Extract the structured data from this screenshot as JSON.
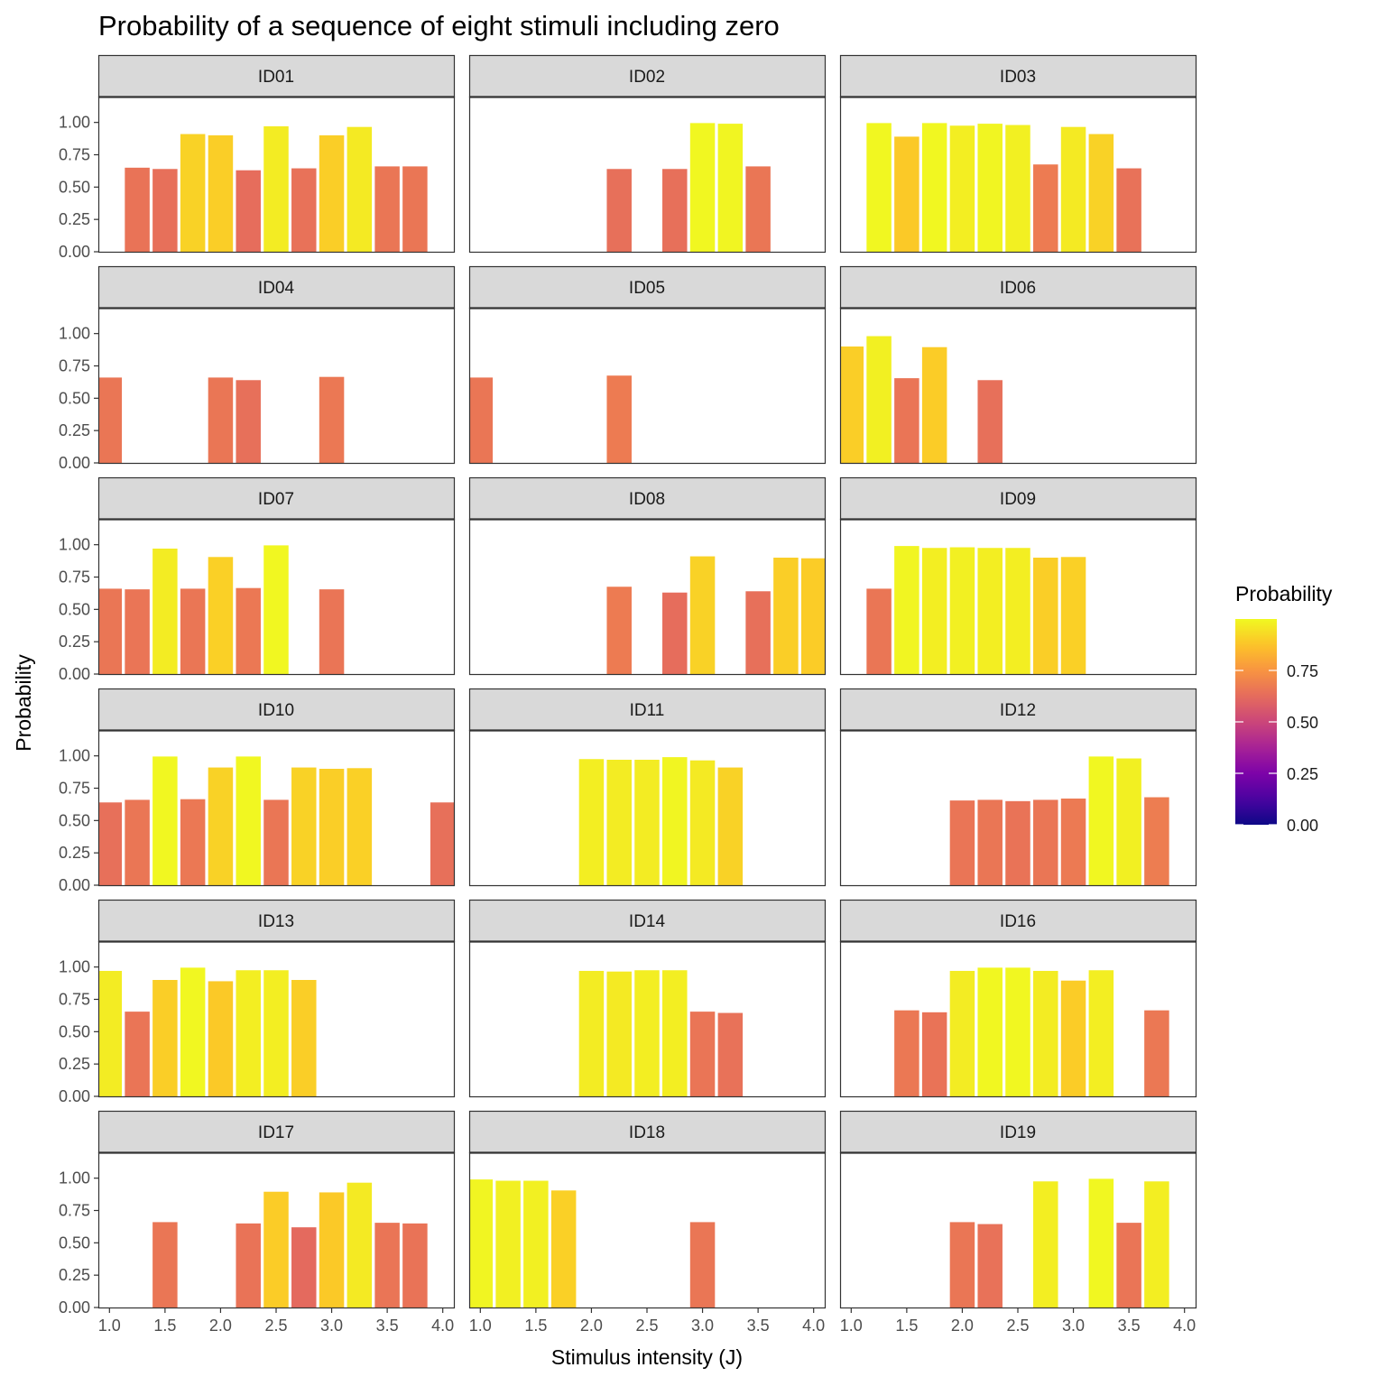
{
  "chart_data": {
    "type": "bar",
    "title": "Probability of a sequence of eight stimuli including zero",
    "xlabel": "Stimulus intensity (J)",
    "ylabel": "Probability",
    "xlim": [
      1.0,
      4.0
    ],
    "ylim": [
      0,
      1.0
    ],
    "x_ticks": [
      "1.0",
      "1.5",
      "2.0",
      "2.5",
      "3.0",
      "3.5",
      "4.0"
    ],
    "y_ticks": [
      "0.00",
      "0.25",
      "0.50",
      "0.75",
      "1.00"
    ],
    "bar_x": [
      1.0,
      1.25,
      1.5,
      1.75,
      2.0,
      2.25,
      2.5,
      2.75,
      3.0,
      3.25,
      3.5,
      3.75,
      4.0
    ],
    "colorscale": "plasma",
    "legend": {
      "title": "Probability",
      "labels": [
        "0.75",
        "0.50",
        "0.25",
        "0.00"
      ],
      "breaks": [
        0.75,
        0.5,
        0.25,
        0.0
      ],
      "placement": "right"
    },
    "facets": [
      {
        "id": "ID01",
        "values": [
          null,
          0.65,
          0.64,
          0.91,
          0.9,
          0.63,
          0.97,
          0.645,
          0.9,
          0.965,
          0.66,
          0.66,
          null
        ]
      },
      {
        "id": "ID02",
        "values": [
          null,
          null,
          null,
          null,
          null,
          0.64,
          null,
          0.64,
          0.995,
          0.99,
          0.66,
          null,
          null
        ]
      },
      {
        "id": "ID03",
        "values": [
          null,
          0.995,
          0.89,
          0.995,
          0.975,
          0.99,
          0.98,
          0.675,
          0.965,
          0.91,
          0.645,
          null,
          null
        ]
      },
      {
        "id": "ID04",
        "values": [
          0.66,
          null,
          null,
          null,
          0.66,
          0.64,
          null,
          null,
          0.665,
          null,
          null,
          null,
          null
        ]
      },
      {
        "id": "ID05",
        "values": [
          0.66,
          null,
          null,
          null,
          null,
          0.675,
          null,
          null,
          null,
          null,
          null,
          null,
          null
        ]
      },
      {
        "id": "ID06",
        "values": [
          0.9,
          0.98,
          0.655,
          0.895,
          null,
          0.64,
          null,
          null,
          null,
          null,
          null,
          null,
          null
        ]
      },
      {
        "id": "ID07",
        "values": [
          0.66,
          0.655,
          0.97,
          0.66,
          0.905,
          0.665,
          0.995,
          null,
          0.655,
          null,
          null,
          null,
          null
        ]
      },
      {
        "id": "ID08",
        "values": [
          null,
          null,
          null,
          null,
          null,
          0.675,
          null,
          0.63,
          0.91,
          null,
          0.64,
          0.9,
          0.895
        ]
      },
      {
        "id": "ID09",
        "values": [
          null,
          0.66,
          0.99,
          0.975,
          0.98,
          0.975,
          0.975,
          0.9,
          0.905,
          null,
          null,
          null,
          null
        ]
      },
      {
        "id": "ID10",
        "values": [
          0.64,
          0.66,
          0.995,
          0.665,
          0.91,
          0.995,
          0.66,
          0.91,
          0.9,
          0.905,
          null,
          null,
          0.64
        ]
      },
      {
        "id": "ID11",
        "values": [
          null,
          null,
          null,
          null,
          0.975,
          0.97,
          0.97,
          0.99,
          0.965,
          0.91,
          null,
          null,
          null
        ]
      },
      {
        "id": "ID12",
        "values": [
          null,
          null,
          null,
          null,
          0.655,
          0.66,
          0.65,
          0.66,
          0.67,
          0.995,
          0.98,
          0.68,
          null
        ]
      },
      {
        "id": "ID13",
        "values": [
          0.97,
          0.655,
          0.9,
          0.995,
          0.89,
          0.975,
          0.975,
          0.9,
          null,
          null,
          null,
          null,
          null
        ]
      },
      {
        "id": "ID14",
        "values": [
          null,
          null,
          null,
          null,
          0.97,
          0.965,
          0.975,
          0.975,
          0.655,
          0.645,
          null,
          null,
          null
        ]
      },
      {
        "id": "ID16",
        "values": [
          null,
          null,
          0.665,
          0.65,
          0.97,
          0.995,
          0.995,
          0.97,
          0.895,
          0.975,
          null,
          0.665,
          null
        ]
      },
      {
        "id": "ID17",
        "values": [
          null,
          null,
          0.66,
          null,
          null,
          0.65,
          0.895,
          0.62,
          0.89,
          0.965,
          0.655,
          0.65,
          null
        ]
      },
      {
        "id": "ID18",
        "values": [
          0.99,
          0.98,
          0.98,
          0.905,
          null,
          null,
          null,
          null,
          0.66,
          null,
          null,
          null,
          null
        ]
      },
      {
        "id": "ID19",
        "values": [
          null,
          null,
          null,
          null,
          0.66,
          0.645,
          null,
          0.975,
          null,
          0.995,
          0.655,
          0.975,
          null
        ]
      }
    ]
  }
}
